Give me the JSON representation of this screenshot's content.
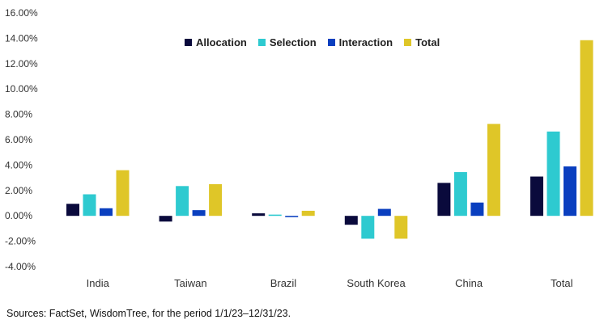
{
  "chart_data": {
    "type": "bar",
    "categories": [
      "India",
      "Taiwan",
      "Brazil",
      "South Korea",
      "China",
      "Total"
    ],
    "series": [
      {
        "name": "Allocation",
        "color": "#0a0a3c",
        "values": [
          0.95,
          -0.45,
          0.2,
          -0.7,
          2.6,
          3.1
        ]
      },
      {
        "name": "Selection",
        "color": "#2ecad0",
        "values": [
          1.7,
          2.35,
          0.1,
          -1.8,
          3.45,
          6.65
        ]
      },
      {
        "name": "Interaction",
        "color": "#0a3fbf",
        "values": [
          0.6,
          0.45,
          -0.1,
          0.55,
          1.05,
          3.9
        ]
      },
      {
        "name": "Total",
        "color": "#dfc628",
        "values": [
          3.6,
          2.5,
          0.4,
          -1.8,
          7.25,
          13.85
        ]
      }
    ],
    "ylim": [
      -4,
      16
    ],
    "yticks": [
      "-4.00%",
      "-2.00%",
      "0.00%",
      "2.00%",
      "4.00%",
      "6.00%",
      "8.00%",
      "10.00%",
      "12.00%",
      "14.00%",
      "16.00%"
    ],
    "grid": false,
    "legend_position": "top-center"
  },
  "source_note": "Sources: FactSet, WisdomTree, for the period 1/1/23–12/31/23."
}
